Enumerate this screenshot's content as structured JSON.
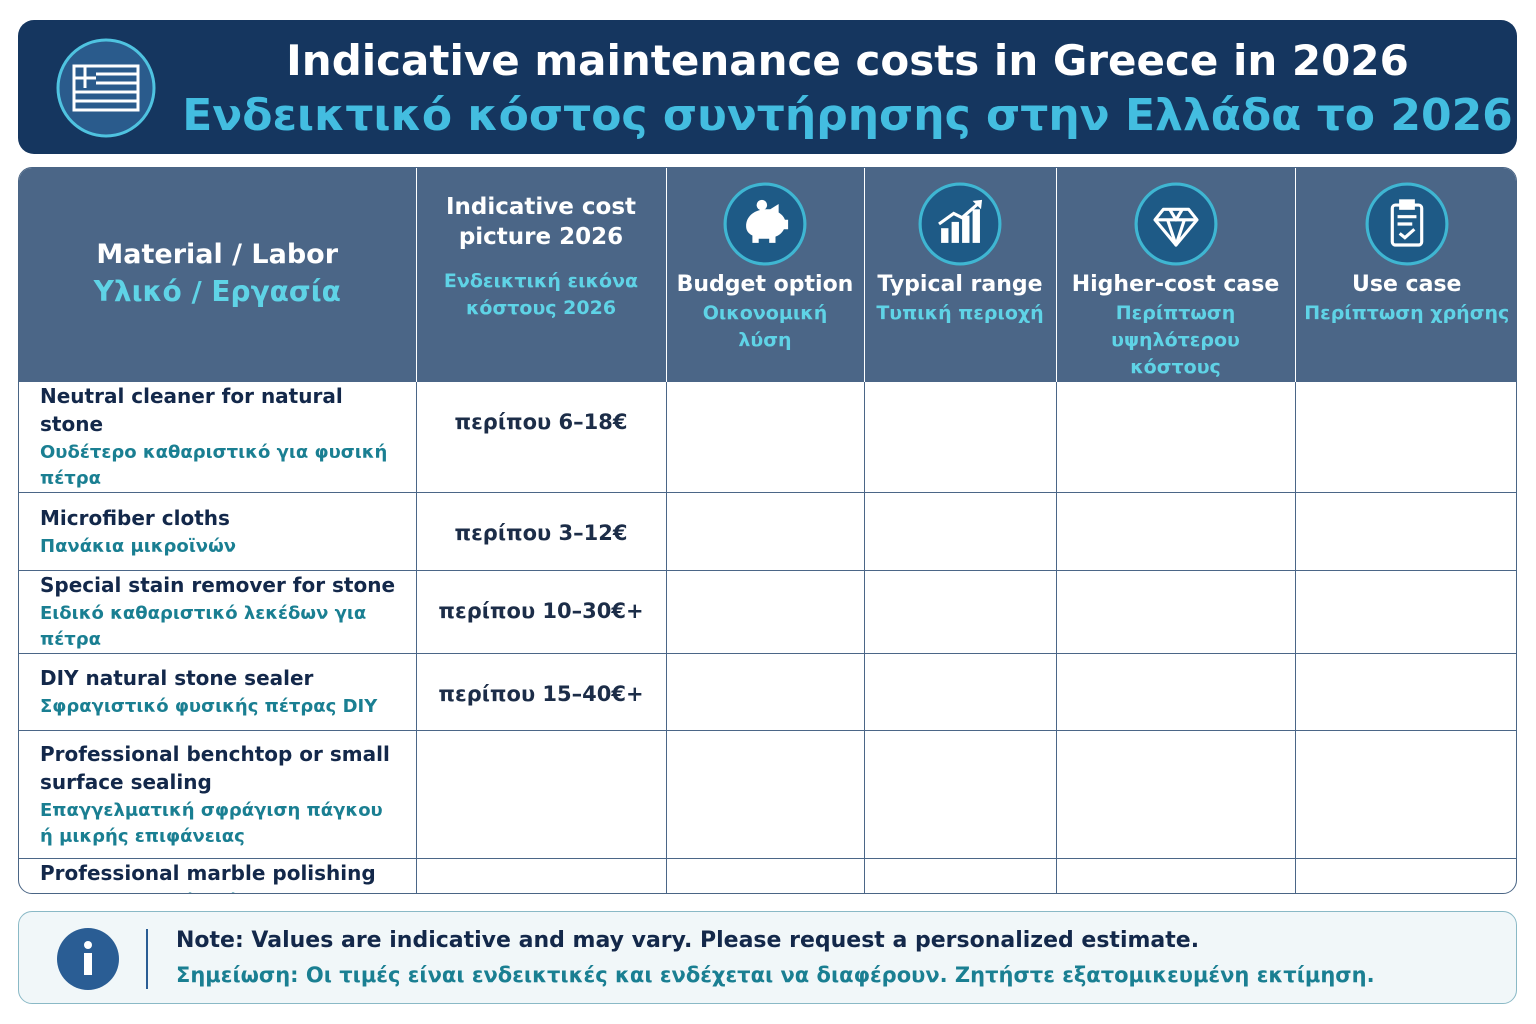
{
  "header": {
    "title_en": "Indicative maintenance costs in Greece in 2026",
    "title_el": "Ενδεικτικό κόστος συντήρησης στην Ελλάδα το 2026"
  },
  "table": {
    "columns": [
      {
        "en": "Material / Labor",
        "el": "Υλικό / Εργασία"
      },
      {
        "en": "Indicative cost picture 2026",
        "el": "Ενδεικτική εικόνα κόστους 2026"
      },
      {
        "en": "Budget option",
        "el": "Οικονομική λύση"
      },
      {
        "en": "Typical range",
        "el": "Τυπική περιοχή"
      },
      {
        "en": "Higher-cost case",
        "el": "Περίπτωση υψηλότερου κόστους"
      },
      {
        "en": "Use case",
        "el": "Περίπτωση χρήσης"
      }
    ],
    "rows": [
      {
        "en": "Neutral cleaner for natural stone",
        "el": "Ουδέτερο καθαριστικό για φυσική πέτρα",
        "cost": "περίπου 6–18€"
      },
      {
        "en": "Microfiber cloths",
        "el": "Πανάκια μικροϊνών",
        "cost": "περίπου 3–12€"
      },
      {
        "en": "Special stain remover for stone",
        "el": "Ειδικό καθαριστικό λεκέδων για πέτρα",
        "cost": "περίπου 10–30€+"
      },
      {
        "en": "DIY natural stone sealer",
        "el": "Σφραγιστικό φυσικής πέτρας DIY",
        "cost": "περίπου 15–40€+"
      },
      {
        "en": "Professional benchtop or small surface sealing",
        "el": "Επαγγελματική σφράγιση πάγκου ή μικρής επιφάνειας"
      },
      {
        "en": "Professional marble polishing",
        "el": "Επαγγελματική γυάλισμα μαρμάρου"
      }
    ]
  },
  "note": {
    "en": "Note: Values are indicative and may vary. Please request a personalized estimate.",
    "el": "Σημείωση: Οι τιμές είναι ενδεικτικές και ενδέχεται να διαφέρουν. Ζητήστε εξατομικευμένη εκτίμηση."
  }
}
